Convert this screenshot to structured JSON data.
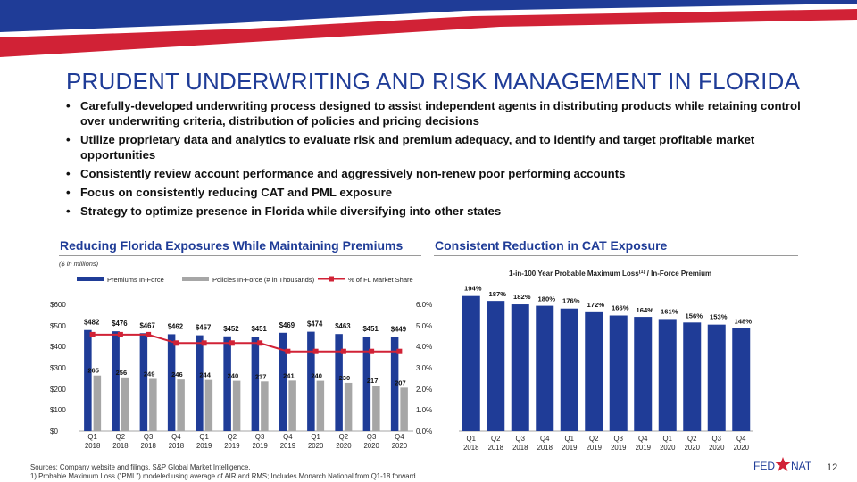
{
  "colors": {
    "navy": "#1f3c97",
    "red": "#d12236",
    "gray": "#a6a6a6",
    "text": "#111111"
  },
  "page": {
    "title": "PRUDENT UNDERWRITING AND RISK MANAGEMENT IN FLORIDA",
    "bullets": [
      "Carefully-developed underwriting process designed to assist independent agents in distributing products while retaining control over underwriting criteria, distribution of policies and pricing decisions",
      "Utilize proprietary data and analytics to evaluate risk and premium adequacy, and to identify and target profitable market opportunities",
      "Consistently review account performance and aggressively non-renew poor performing accounts",
      "Focus on consistently reducing CAT and PML exposure",
      "Strategy to optimize presence in Florida while diversifying into other states"
    ],
    "left_section_title": "Reducing Florida Exposures While Maintaining Premiums",
    "right_section_title": "Consistent Reduction in CAT Exposure",
    "units_note": "($ in millions)",
    "footer": {
      "sources": "Sources: Company website and filings, S&P Global Market Intelligence.",
      "footnote": "1)    Probable Maximum Loss (\"PML\") modeled using average of AIR and RMS; Includes Monarch National from Q1-18 forward."
    },
    "page_number": "12",
    "logo_left": "FED",
    "logo_right": "NAT"
  },
  "chart_data": [
    {
      "type": "bar",
      "title": "Reducing Florida Exposures While Maintaining Premiums",
      "categories": [
        [
          "Q1",
          "2018"
        ],
        [
          "Q2",
          "2018"
        ],
        [
          "Q3",
          "2018"
        ],
        [
          "Q4",
          "2018"
        ],
        [
          "Q1",
          "2019"
        ],
        [
          "Q2",
          "2019"
        ],
        [
          "Q3",
          "2019"
        ],
        [
          "Q4",
          "2019"
        ],
        [
          "Q1",
          "2020"
        ],
        [
          "Q2",
          "2020"
        ],
        [
          "Q3",
          "2020"
        ],
        [
          "Q4",
          "2020"
        ]
      ],
      "series": [
        {
          "name": "Premiums In-Force",
          "kind": "bar",
          "axis": "left",
          "values": [
            482,
            476,
            467,
            462,
            457,
            452,
            451,
            469,
            474,
            463,
            451,
            449
          ],
          "labels": [
            "$482",
            "$476",
            "$467",
            "$462",
            "$457",
            "$452",
            "$451",
            "$469",
            "$474",
            "$463",
            "$451",
            "$449"
          ]
        },
        {
          "name": "Policies In-Force (# in Thousands)",
          "kind": "bar",
          "axis": "left",
          "values": [
            265,
            256,
            249,
            246,
            244,
            240,
            237,
            241,
            240,
            230,
            217,
            207
          ],
          "labels": [
            "265",
            "256",
            "249",
            "246",
            "244",
            "240",
            "237",
            "241",
            "240",
            "230",
            "217",
            "207"
          ]
        },
        {
          "name": "% of FL Market Share",
          "kind": "line",
          "axis": "right",
          "values": [
            4.6,
            4.6,
            4.6,
            4.2,
            4.2,
            4.2,
            4.2,
            3.8,
            3.8,
            3.8,
            3.8,
            3.8
          ]
        }
      ],
      "ylim": [
        0,
        600
      ],
      "yticks": [
        "$0",
        "$100",
        "$200",
        "$300",
        "$400",
        "$500",
        "$600"
      ],
      "y2lim": [
        0,
        6
      ],
      "y2ticks": [
        "0.0%",
        "1.0%",
        "2.0%",
        "3.0%",
        "4.0%",
        "5.0%",
        "6.0%"
      ],
      "legend_position": "top"
    },
    {
      "type": "bar",
      "title": "1-in-100 Year Probable Maximum Loss",
      "title_sup": "(1)",
      "title_suffix": " / In-Force Premium",
      "categories": [
        [
          "Q1",
          "2018"
        ],
        [
          "Q2",
          "2018"
        ],
        [
          "Q3",
          "2018"
        ],
        [
          "Q4",
          "2018"
        ],
        [
          "Q1",
          "2019"
        ],
        [
          "Q2",
          "2019"
        ],
        [
          "Q3",
          "2019"
        ],
        [
          "Q4",
          "2019"
        ],
        [
          "Q1",
          "2020"
        ],
        [
          "Q2",
          "2020"
        ],
        [
          "Q3",
          "2020"
        ],
        [
          "Q4",
          "2020"
        ]
      ],
      "values": [
        194,
        187,
        182,
        180,
        176,
        172,
        166,
        164,
        161,
        156,
        153,
        148
      ],
      "labels": [
        "194%",
        "187%",
        "182%",
        "180%",
        "176%",
        "172%",
        "166%",
        "164%",
        "161%",
        "156%",
        "153%",
        "148%"
      ],
      "ylim": [
        0,
        200
      ]
    }
  ]
}
